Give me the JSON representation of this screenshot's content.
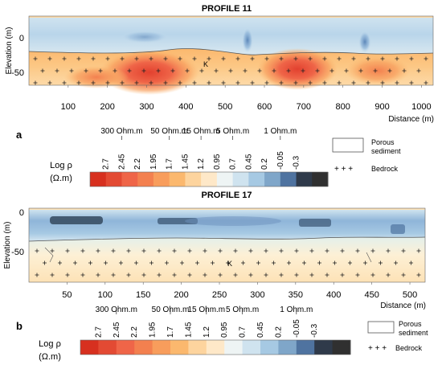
{
  "resistivity_scale": {
    "log_label": "Log ρ",
    "unit_label": "(Ω.m)",
    "stops": [
      "2.7",
      "2.45",
      "2.2",
      "1.95",
      "1.7",
      "1.45",
      "1.2",
      "0.95",
      "0.7",
      "0.45",
      "0.2",
      "-0.05",
      "-0.3"
    ],
    "ohm_markers": [
      {
        "label": "300 Ohm.m",
        "stop": "2.45"
      },
      {
        "label": "50 Ohm.m",
        "stop": "1.7"
      },
      {
        "label": "15 Ohm.m",
        "stop": "1.2"
      },
      {
        "label": "5 Ohm.m",
        "stop": "0.7"
      },
      {
        "label": "1 Ohm.m",
        "stop": "-0.05"
      }
    ],
    "colors": [
      "#d7301f",
      "#e34a33",
      "#ef6548",
      "#f3804f",
      "#f89d5c",
      "#fbb86e",
      "#fdd49e",
      "#fee8c8",
      "#eef4f4",
      "#cfe3ef",
      "#a6c9e3",
      "#7fa6c9",
      "#4f73a0",
      "#2f3a4a",
      "#303030"
    ]
  },
  "legend": {
    "porous_line1": "Porous",
    "porous_line2": "sediment",
    "bedrock_symbol": "+ + +",
    "bedrock_label": "Bedrock"
  },
  "panels": [
    {
      "title": "PROFILE 11",
      "letter": "a",
      "ylabel": "Elevation (m)",
      "xlabel": "Distance (m)",
      "xticks": [
        "100",
        "200",
        "300",
        "400",
        "500",
        "600",
        "700",
        "800",
        "900",
        "1000"
      ],
      "yticks": [
        "0",
        "-50"
      ],
      "x_range": [
        0,
        1030
      ],
      "bedrock_marker": "K"
    },
    {
      "title": "PROFILE 17",
      "letter": "b",
      "ylabel": "Elevation (m)",
      "xlabel": "Distance (m)",
      "xticks": [
        "50",
        "100",
        "150",
        "200",
        "250",
        "300",
        "350",
        "400",
        "450",
        "500"
      ],
      "yticks": [
        "0",
        "-50"
      ],
      "x_range": [
        0,
        520
      ],
      "bedrock_marker": "K"
    }
  ]
}
